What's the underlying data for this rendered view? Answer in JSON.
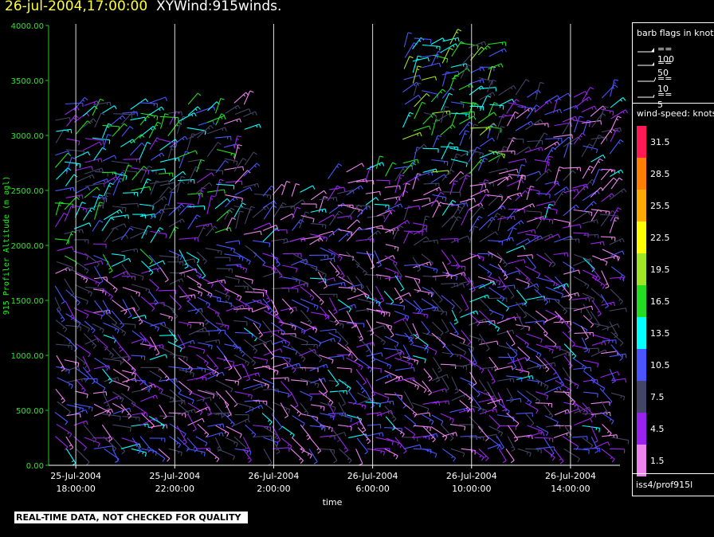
{
  "header": {
    "date_time": "26-jul-2004,17:00:00",
    "product": "XYWind:915winds."
  },
  "footer": {
    "quality_note": "REAL-TIME DATA, NOT CHECKED FOR QUALITY",
    "station": "iss4/prof915l"
  },
  "legend": {
    "flags_title": "barb flags in knots",
    "flags": [
      "== 100",
      "== 50",
      "== 10",
      "== 5"
    ],
    "speed_title": "wind-speed: knots",
    "speed_scale": [
      {
        "label": "31.5",
        "color": "#ff1a55"
      },
      {
        "label": "28.5",
        "color": "#ff8000"
      },
      {
        "label": "25.5",
        "color": "#ffaa00"
      },
      {
        "label": "22.5",
        "color": "#ffff00"
      },
      {
        "label": "19.5",
        "color": "#a0e622"
      },
      {
        "label": "16.5",
        "color": "#22dd22"
      },
      {
        "label": "13.5",
        "color": "#00ffff"
      },
      {
        "label": "10.5",
        "color": "#4a55ff"
      },
      {
        "label": "7.5",
        "color": "#444466"
      },
      {
        "label": "4.5",
        "color": "#9a22ee"
      },
      {
        "label": "1.5",
        "color": "#ee82ee"
      }
    ]
  },
  "chart_data": {
    "type": "wind-barb time-height",
    "title": "XYWind:915winds.",
    "xlabel": "time",
    "ylabel": "915 Profiler Altitude (m agl)",
    "ylim": [
      0,
      4000
    ],
    "yticks": [
      "0.00",
      "500.00",
      "1000.00",
      "1500.00",
      "2000.00",
      "2500.00",
      "3000.00",
      "3500.00",
      "4000.00"
    ],
    "xticks": [
      {
        "date": "25-Jul-2004",
        "time": "18:00:00"
      },
      {
        "date": "25-Jul-2004",
        "time": "22:00:00"
      },
      {
        "date": "26-Jul-2004",
        "time": "2:00:00"
      },
      {
        "date": "26-Jul-2004",
        "time": "6:00:00"
      },
      {
        "date": "26-Jul-2004",
        "time": "10:00:00"
      },
      {
        "date": "26-Jul-2004",
        "time": "14:00:00"
      }
    ],
    "x_hours_range": [
      16.9,
      40.0
    ],
    "x_tick_hours": [
      18,
      22,
      26,
      30,
      34,
      38
    ],
    "grid": "vertical lines at time ticks",
    "legend_placement": "right"
  }
}
